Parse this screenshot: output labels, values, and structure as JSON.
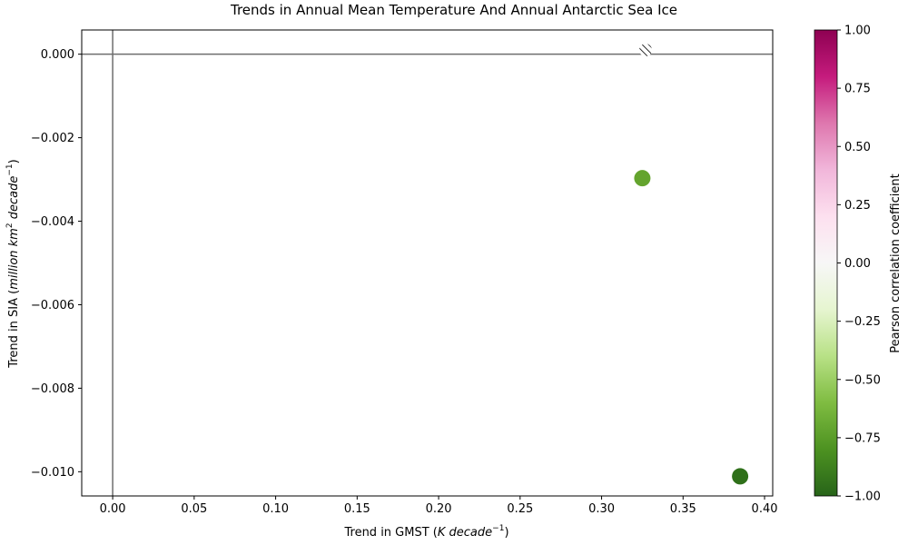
{
  "chart_data": {
    "type": "scatter",
    "title": "Trends in Annual Mean Temperature And Annual Antarctic Sea Ice",
    "xlabel": {
      "pre": "Trend in GMST (",
      "italic": "K decade",
      "sup": "−1",
      "post": ")"
    },
    "ylabel": {
      "pre": "Trend in SIA (",
      "italic1": "million km",
      "sup1": "2",
      "italic2": " decade",
      "sup2": "−1",
      "post": ")"
    },
    "xlim": [
      -0.019,
      0.405
    ],
    "ylim": [
      -0.01058,
      0.00058
    ],
    "xticks": [
      0.0,
      0.05,
      0.1,
      0.15,
      0.2,
      0.25,
      0.3,
      0.35,
      0.4
    ],
    "xtick_labels": [
      "0.00",
      "0.05",
      "0.10",
      "0.15",
      "0.20",
      "0.25",
      "0.30",
      "0.35",
      "0.40"
    ],
    "yticks": [
      0.0,
      -0.002,
      -0.004,
      -0.006,
      -0.008,
      -0.01
    ],
    "ytick_labels": [
      "0.000",
      "−0.002",
      "−0.004",
      "−0.006",
      "−0.008",
      "−0.010"
    ],
    "reference_lines": {
      "x": 0,
      "y": 0
    },
    "points": [
      {
        "x": 0.325,
        "y": -0.00297,
        "r": -0.6,
        "color": "#64a42e"
      },
      {
        "x": 0.385,
        "y": -0.01011,
        "r": -0.85,
        "color": "#2f701a"
      },
      {
        "x": 0.327,
        "y": 0.0001,
        "r": null,
        "marker": "hatched"
      }
    ],
    "colorbar": {
      "label": "Pearson correlation coefficient",
      "range": [
        -1,
        1
      ],
      "ticks": [
        1.0,
        0.75,
        0.5,
        0.25,
        0.0,
        -0.25,
        -0.5,
        -0.75,
        -1.0
      ],
      "tick_labels": [
        "1.00",
        "0.75",
        "0.50",
        "0.25",
        "0.00",
        "−0.25",
        "−0.50",
        "−0.75",
        "−1.00"
      ],
      "colormap": "PiYG",
      "stops": [
        "#276419",
        "#4d9221",
        "#7fbc41",
        "#b8e186",
        "#e6f5d0",
        "#f7f7f7",
        "#fde0ef",
        "#f1b6da",
        "#de77ae",
        "#c51b7d",
        "#8e0152"
      ]
    }
  }
}
